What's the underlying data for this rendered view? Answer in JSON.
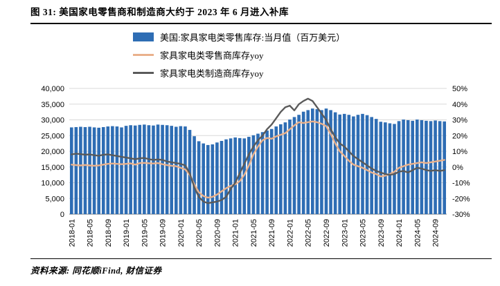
{
  "page": {
    "title": "图 31: 美国家电零售商和制造商大约于 2023 年 6 月进入补库",
    "source_note": "资料来源: 同花顺iFind, 财信证券"
  },
  "legend": {
    "items": [
      {
        "label": "美国:家具家电类零售库存:当月值（百万美元）",
        "color": "#2E6DB4",
        "type": "rect"
      },
      {
        "label": "家具家电类零售商库存yoy",
        "color": "#E9B18C",
        "type": "line"
      },
      {
        "label": "家具家电类制造商库存yoy",
        "color": "#5A5A5A",
        "type": "line"
      }
    ]
  },
  "chart_data": {
    "type": "bar+line",
    "start_month": "2018-01",
    "n_months": 83,
    "grid_color": "#D9D9D9",
    "axis_color": "#808080",
    "x_tick_labels": [
      "2018-01",
      "2018-05",
      "2018-09",
      "2019-01",
      "2019-05",
      "2019-09",
      "2020-01",
      "2020-05",
      "2020-09",
      "2021-01",
      "2021-05",
      "2021-09",
      "2022-01",
      "2022-05",
      "2022-09",
      "2023-01",
      "2023-05",
      "2023-09",
      "2024-01",
      "2024-05",
      "2024-09"
    ],
    "left_axis": {
      "min": 0,
      "max": 40000,
      "step": 5000,
      "tick_labels": [
        "0",
        "5,000",
        "10,000",
        "15,000",
        "20,000",
        "25,000",
        "30,000",
        "35,000",
        "40,000"
      ]
    },
    "right_axis": {
      "min": -30,
      "max": 50,
      "step": 10,
      "tick_labels": [
        "-30%",
        "-20%",
        "-10%",
        "0%",
        "10%",
        "20%",
        "30%",
        "40%",
        "50%"
      ]
    },
    "bar_series": {
      "name": "美国:家具家电类零售库存:当月值（百万美元）",
      "color": "#2E6DB4",
      "axis": "left",
      "values": [
        27600,
        27700,
        27800,
        27700,
        27800,
        27600,
        27500,
        27700,
        27900,
        28000,
        27900,
        27600,
        28100,
        28300,
        28200,
        28400,
        28500,
        28300,
        28200,
        28500,
        28400,
        28300,
        28100,
        27800,
        28000,
        27900,
        26800,
        24800,
        23200,
        22500,
        22000,
        22200,
        22800,
        23300,
        23800,
        24100,
        24400,
        24200,
        24100,
        24600,
        25100,
        25600,
        26100,
        26600,
        27100,
        27900,
        28600,
        29200,
        30100,
        30900,
        31600,
        32600,
        33100,
        33600,
        33400,
        33100,
        33600,
        33100,
        32400,
        31700,
        31900,
        31600,
        31100,
        31600,
        31900,
        31500,
        30900,
        30300,
        29400,
        29200,
        28900,
        28700,
        29600,
        30100,
        29900,
        29700,
        30100,
        29900,
        29700,
        29600,
        29800,
        29600,
        29500
      ]
    },
    "line_series": [
      {
        "name": "家具家电类零售商库存yoy",
        "color": "#E9B18C",
        "axis": "right",
        "values": [
          1.5,
          1.2,
          1.0,
          1.3,
          1.0,
          0.8,
          1.0,
          1.5,
          2.0,
          2.2,
          2.0,
          1.8,
          2.0,
          2.3,
          1.5,
          2.5,
          2.6,
          2.4,
          2.2,
          2.5,
          1.8,
          1.2,
          0.8,
          0.5,
          -0.5,
          -1.5,
          -5.0,
          -11.0,
          -16.0,
          -18.5,
          -19.5,
          -19.0,
          -17.5,
          -15.5,
          -13.5,
          -12.0,
          -11.0,
          -9.0,
          -5.0,
          1.0,
          8.0,
          13.0,
          17.0,
          18.5,
          18.0,
          19.5,
          20.5,
          21.5,
          24.0,
          26.5,
          28.5,
          28.0,
          28.5,
          29.0,
          28.5,
          27.5,
          26.0,
          21.0,
          15.0,
          10.0,
          7.0,
          4.0,
          1.5,
          0.5,
          -0.5,
          -2.0,
          -3.5,
          -4.5,
          -6.0,
          -5.5,
          -4.5,
          -3.0,
          -0.5,
          0.5,
          1.5,
          2.0,
          2.5,
          3.0,
          2.5,
          3.0,
          3.5,
          4.0,
          4.5
        ]
      },
      {
        "name": "家具家电类制造商库存yoy",
        "color": "#5A5A5A",
        "axis": "right",
        "values": [
          8.0,
          8.5,
          8.2,
          7.8,
          8.0,
          7.5,
          7.2,
          7.8,
          8.0,
          7.5,
          7.0,
          6.5,
          6.0,
          5.5,
          5.0,
          5.5,
          5.8,
          5.0,
          4.5,
          4.8,
          4.5,
          3.5,
          3.0,
          2.5,
          2.0,
          1.0,
          -4.0,
          -13.0,
          -19.0,
          -22.0,
          -23.0,
          -22.5,
          -22.0,
          -21.0,
          -19.0,
          -14.0,
          -10.0,
          -4.0,
          2.0,
          8.0,
          13.0,
          17.0,
          20.0,
          24.0,
          27.0,
          31.0,
          35.0,
          38.0,
          39.0,
          36.0,
          40.0,
          42.0,
          43.5,
          42.0,
          38.0,
          34.0,
          30.0,
          24.0,
          19.0,
          15.0,
          13.0,
          10.0,
          7.0,
          5.0,
          3.0,
          1.0,
          -1.0,
          -2.5,
          -3.5,
          -4.5,
          -5.0,
          -4.5,
          -3.0,
          -2.5,
          -3.5,
          -2.0,
          -0.5,
          -1.0,
          -2.0,
          -2.5,
          -2.0,
          -2.5,
          -2.0
        ]
      }
    ]
  }
}
